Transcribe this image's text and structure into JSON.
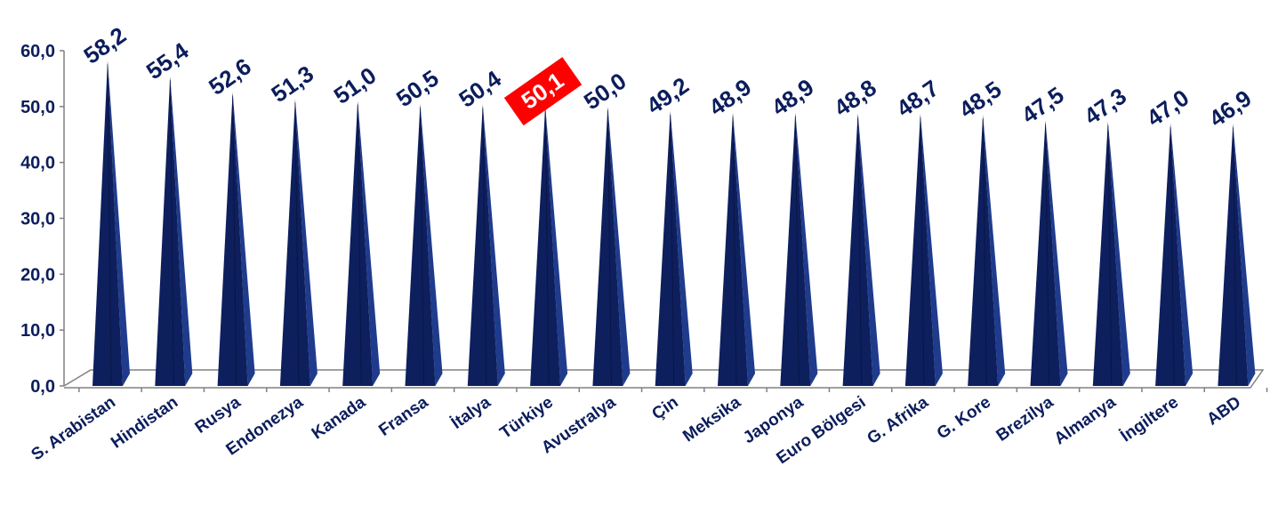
{
  "chart_data": {
    "type": "bar",
    "bar_shape": "cone",
    "categories": [
      "S. Arabistan",
      "Hindistan",
      "Rusya",
      "Endonezya",
      "Kanada",
      "Fransa",
      "İtalya",
      "Türkiye",
      "Avustralya",
      "Çin",
      "Meksika",
      "Japonya",
      "Euro Bölgesi",
      "G. Afrika",
      "G. Kore",
      "Brezilya",
      "Almanya",
      "İngiltere",
      "ABD"
    ],
    "values": [
      58.2,
      55.4,
      52.6,
      51.3,
      51.0,
      50.5,
      50.4,
      50.1,
      50.0,
      49.2,
      48.9,
      48.9,
      48.8,
      48.7,
      48.5,
      47.5,
      47.3,
      47.0,
      46.9
    ],
    "value_labels": [
      "58,2",
      "55,4",
      "52,6",
      "51,3",
      "51,0",
      "50,5",
      "50,4",
      "50,1",
      "50,0",
      "49,2",
      "48,9",
      "48,9",
      "48,8",
      "48,7",
      "48,5",
      "47,5",
      "47,3",
      "47,0",
      "46,9"
    ],
    "highlight_category": "Türkiye",
    "yticks": [
      "0,0",
      "10,0",
      "20,0",
      "30,0",
      "40,0",
      "50,0",
      "60,0"
    ],
    "ylim": [
      0,
      60
    ],
    "title": "",
    "xlabel": "",
    "ylabel": "",
    "grid": false,
    "legend": "none",
    "colors": {
      "bar_front": "#0e1f5e",
      "bar_side": "#1f3b8c",
      "bar_dark": "#070f33",
      "text": "#0b1d5c",
      "highlight_bg": "#ff0000",
      "highlight_text": "#ffffff",
      "axis": "#808080"
    }
  }
}
